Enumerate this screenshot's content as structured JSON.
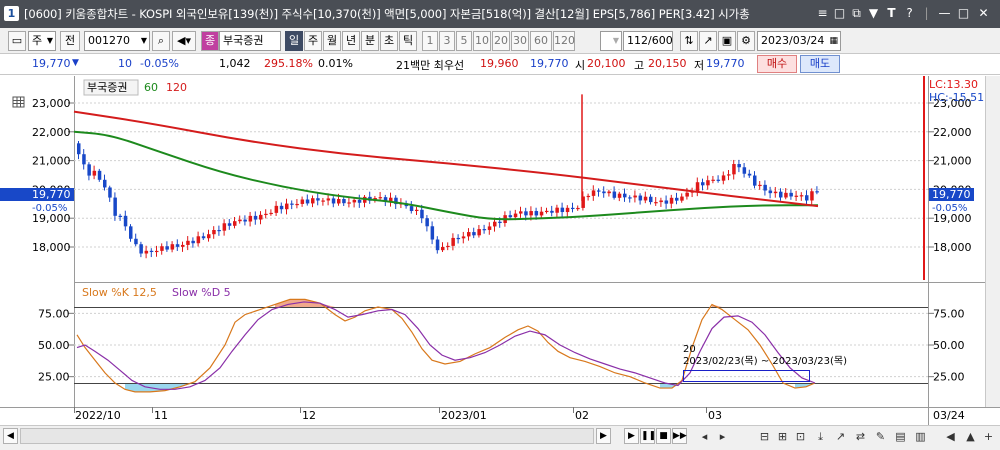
{
  "window": {
    "number": "1",
    "title": "[0600] 키움종합차트 - KOSPI 외국인보유[139(천)] 주식수[10,370(천)] 액면[5,000] 자본금[518(억)] 결산[12월] EPS[5,786] PER[3.42] 시가총",
    "icons": [
      "≡",
      "□",
      "⧉",
      "▼",
      "T",
      "?",
      "|",
      "—",
      "□",
      "✕"
    ]
  },
  "toolbar": {
    "period_select": "주",
    "prev_label": "전",
    "code": "001270",
    "stock_name": "부국증권",
    "interval_buttons": [
      "일",
      "주",
      "월",
      "년",
      "분",
      "초",
      "틱"
    ],
    "number_buttons": [
      "1",
      "3",
      "5",
      "10",
      "20",
      "30",
      "60",
      "120"
    ],
    "count": "112/600",
    "date": "2023/03/24"
  },
  "pricebar": {
    "price": "19,770",
    "change": "10",
    "change_pct": "-0.05%",
    "volume": "1,042",
    "volume_ratio": "295.18%",
    "turnover": "0.01%",
    "prefer_label": "21백만 최우선",
    "prefer_sell": "19,960",
    "prefer_buy": "19,770",
    "open_label": "시",
    "open": "20,100",
    "high_label": "고",
    "high": "20,150",
    "low_label": "저",
    "low": "19,770",
    "buy_label": "매수",
    "sell_label": "매도"
  },
  "price_panel": {
    "legend_name": "부국증권",
    "ma1": "60",
    "ma2": "120",
    "lc_label": "LC:13.30",
    "hc_label": "HC:-15.51",
    "current_price": "19,770",
    "current_pct": "-0.05%",
    "axis_ticks": [
      "23,000",
      "22,000",
      "21,000",
      "20,000",
      "19,000",
      "18,000"
    ],
    "colors": {
      "up": "#e01818",
      "down": "#1848c8",
      "ma60": "#d41c1c",
      "ma120": "#1d8a1d"
    }
  },
  "stoch_panel": {
    "label_k": "Slow %K 12,5",
    "label_d": "Slow %D 5",
    "axis_ticks": [
      "75.00",
      "50.00",
      "25.00"
    ],
    "annotation_value": "20",
    "annotation_range": "2023/02/23(목) ~ 2023/03/23(목)",
    "colors": {
      "k": "#d8781c",
      "d": "#8a2fa8",
      "over": "#f0a080",
      "under": "#8fd3ec"
    }
  },
  "x_axis": {
    "labels": [
      "2022/10",
      "11",
      "12",
      "2023/01",
      "02",
      "03"
    ],
    "last_date": "03/24"
  },
  "chart_data": {
    "type": "candlestick",
    "period": "daily",
    "y_axis_ticks": [
      23000,
      22000,
      21000,
      20000,
      19000,
      18000
    ],
    "moving_averages": [
      {
        "name": "60",
        "color": "#d41c1c"
      },
      {
        "name": "120",
        "color": "#1d8a1d"
      }
    ],
    "last": {
      "date": "2023/03/24",
      "open": 20100,
      "high": 20150,
      "low": 19770,
      "close": 19770
    },
    "stochastic": {
      "k_params": "12,5",
      "d_params": "5",
      "y_ticks": [
        75,
        50,
        25
      ],
      "levels": [
        80,
        20
      ]
    }
  }
}
